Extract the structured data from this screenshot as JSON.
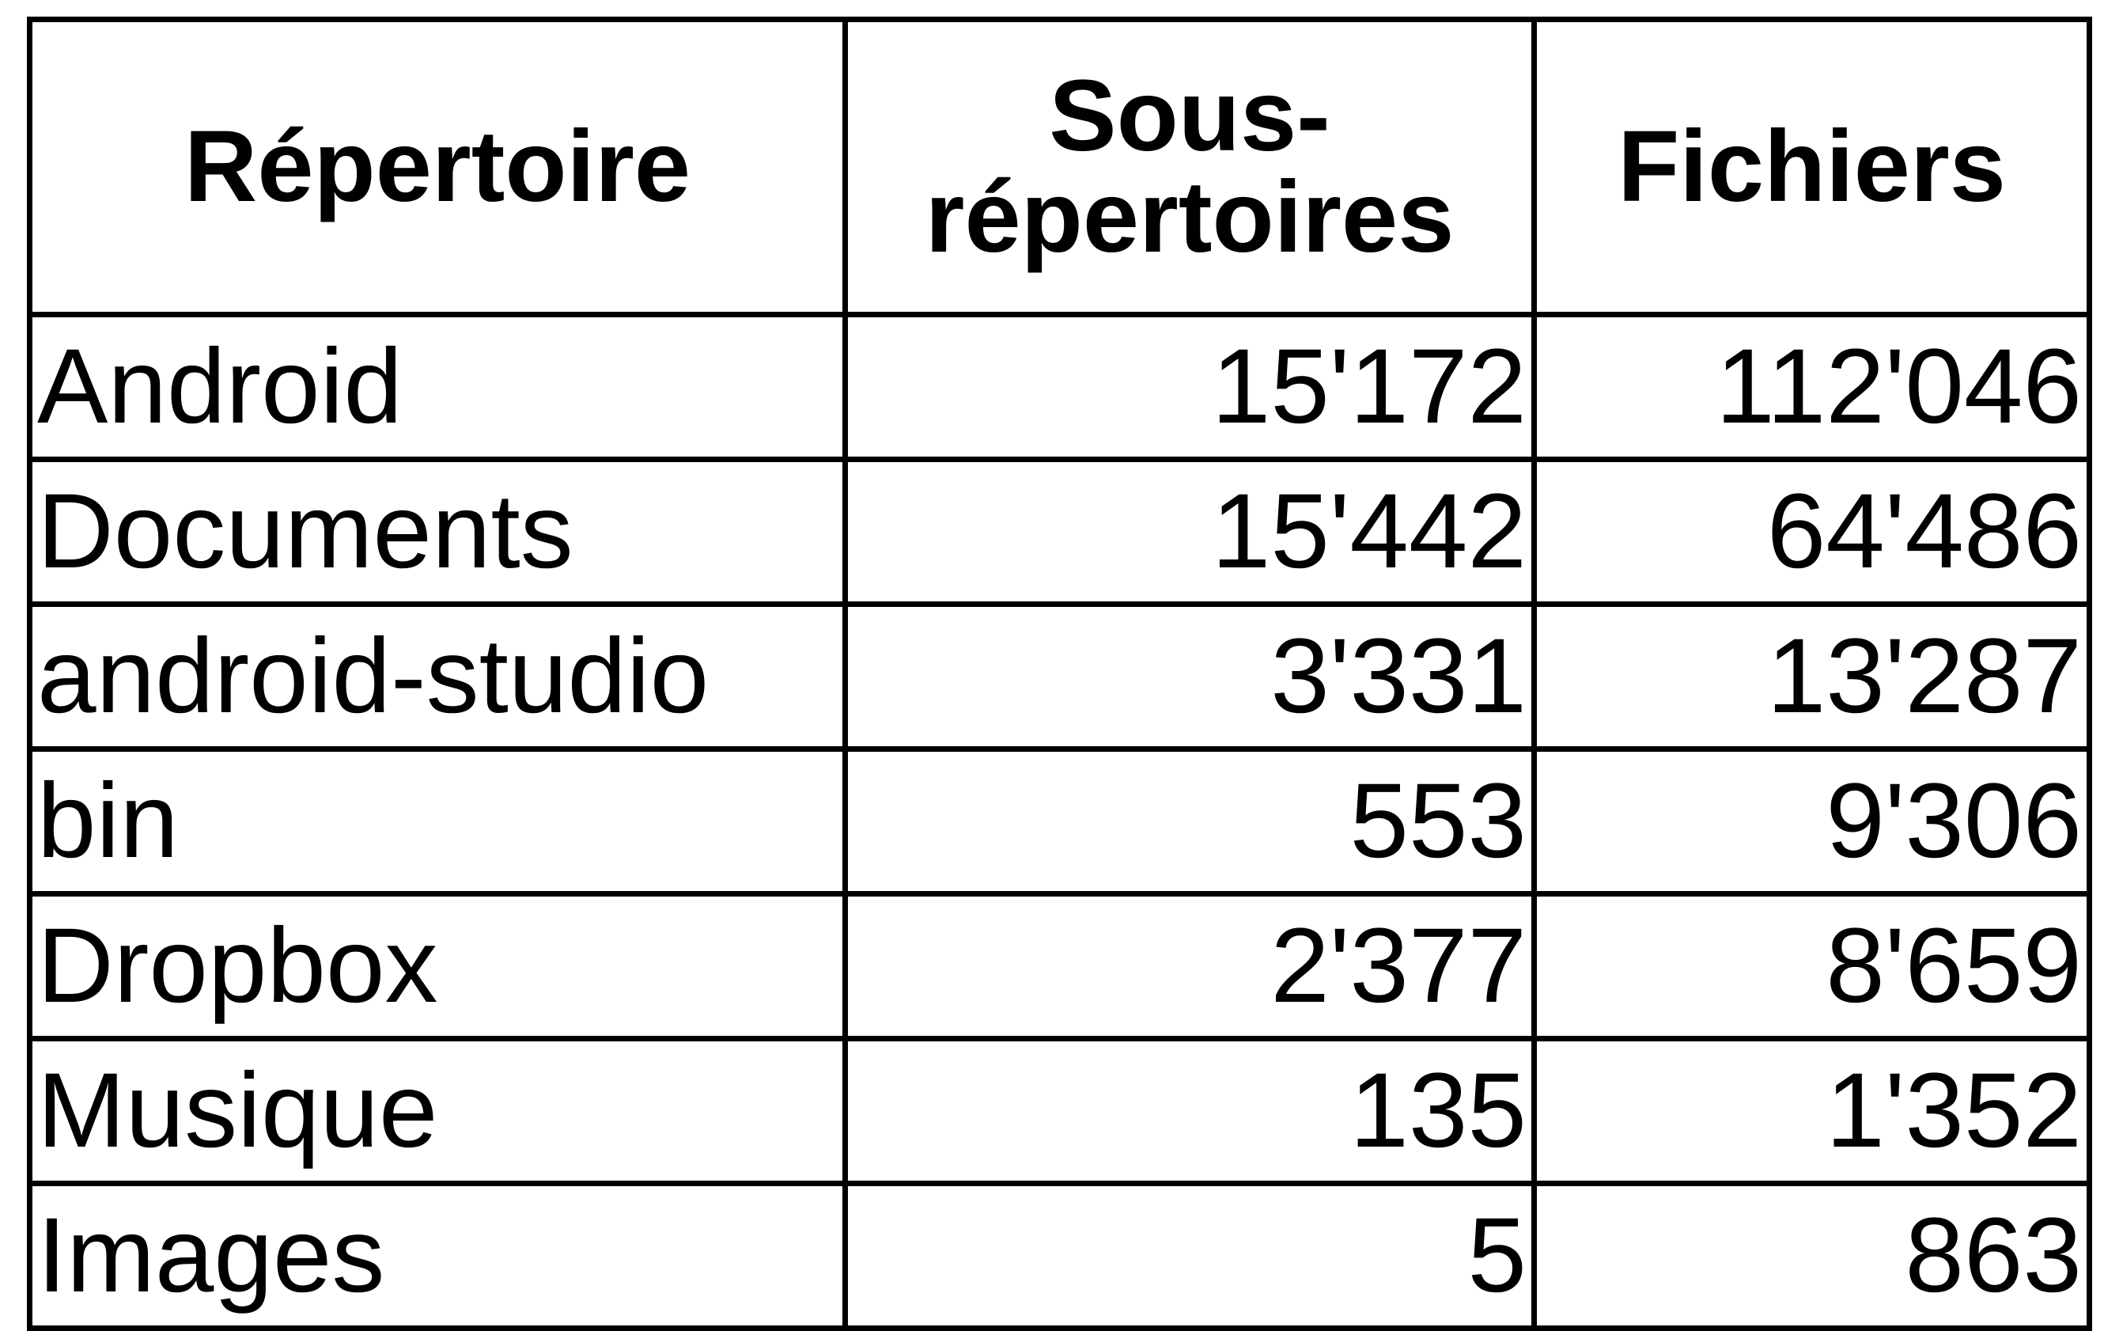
{
  "table": {
    "headers": {
      "directory": "Répertoire",
      "subdirectories_line1": "Sous-",
      "subdirectories_line2": "répertoires",
      "files": "Fichiers"
    },
    "rows": [
      {
        "name": "Android",
        "subdirectories": "15'172",
        "files": "112'046"
      },
      {
        "name": "Documents",
        "subdirectories": "15'442",
        "files": "64'486"
      },
      {
        "name": "android-studio",
        "subdirectories": "3'331",
        "files": "13'287"
      },
      {
        "name": "bin",
        "subdirectories": "553",
        "files": "9'306"
      },
      {
        "name": "Dropbox",
        "subdirectories": "2'377",
        "files": "8'659"
      },
      {
        "name": "Musique",
        "subdirectories": "135",
        "files": "1'352"
      },
      {
        "name": "Images",
        "subdirectories": "5",
        "files": "863"
      }
    ]
  },
  "chart_data": {
    "type": "table",
    "columns": [
      "Répertoire",
      "Sous-répertoires",
      "Fichiers"
    ],
    "rows": [
      [
        "Android",
        15172,
        112046
      ],
      [
        "Documents",
        15442,
        64486
      ],
      [
        "android-studio",
        3331,
        13287
      ],
      [
        "bin",
        553,
        9306
      ],
      [
        "Dropbox",
        2377,
        8659
      ],
      [
        "Musique",
        135,
        1352
      ],
      [
        "Images",
        5,
        863
      ]
    ]
  }
}
